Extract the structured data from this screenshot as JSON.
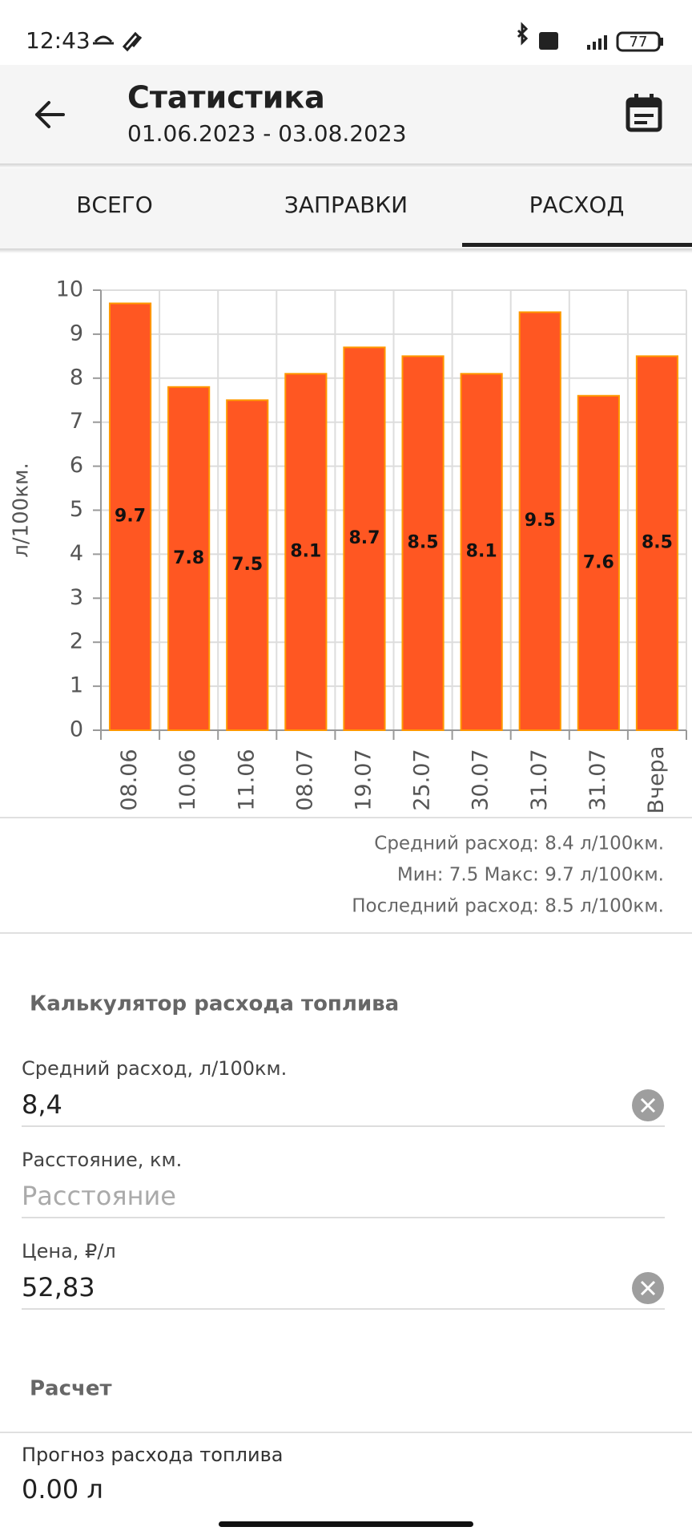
{
  "status_bar": {
    "time": "12:43",
    "battery": "77"
  },
  "header": {
    "title": "Статистика",
    "subtitle": "01.06.2023 - 03.08.2023"
  },
  "tabs": [
    "ВСЕГО",
    "ЗАПРАВКИ",
    "РАСХОД"
  ],
  "chart_data": {
    "type": "bar",
    "y_label": "л/100км.",
    "categories": [
      "08.06",
      "10.06",
      "11.06",
      "08.07",
      "19.07",
      "25.07",
      "30.07",
      "31.07",
      "31.07",
      "Вчера"
    ],
    "values": [
      9.7,
      7.8,
      7.5,
      8.1,
      8.7,
      8.5,
      8.1,
      9.5,
      7.6,
      8.5
    ],
    "color": "#ff5722",
    "ylim": [
      0,
      10
    ],
    "yticks": [
      0,
      1,
      2,
      3,
      4,
      5,
      6,
      7,
      8,
      9,
      10
    ],
    "grid": true
  },
  "summary": [
    "Средний расход: 8.4 л/100км.",
    "Мин: 7.5 Макс: 9.7 л/100км.",
    "Последний расход: 8.5 л/100км."
  ],
  "calculator": {
    "title": "Калькулятор расхода топлива",
    "fields": [
      {
        "label": "Средний расход, л/100км.",
        "value": "8,4"
      },
      {
        "label": "Расстояние, км.",
        "placeholder": "Расстояние"
      },
      {
        "label": "Цена, ₽/л",
        "value": "52,83"
      }
    ]
  },
  "calculation": {
    "title": "Расчет",
    "label": "Прогноз расхода топлива",
    "value": "0.00 л"
  }
}
